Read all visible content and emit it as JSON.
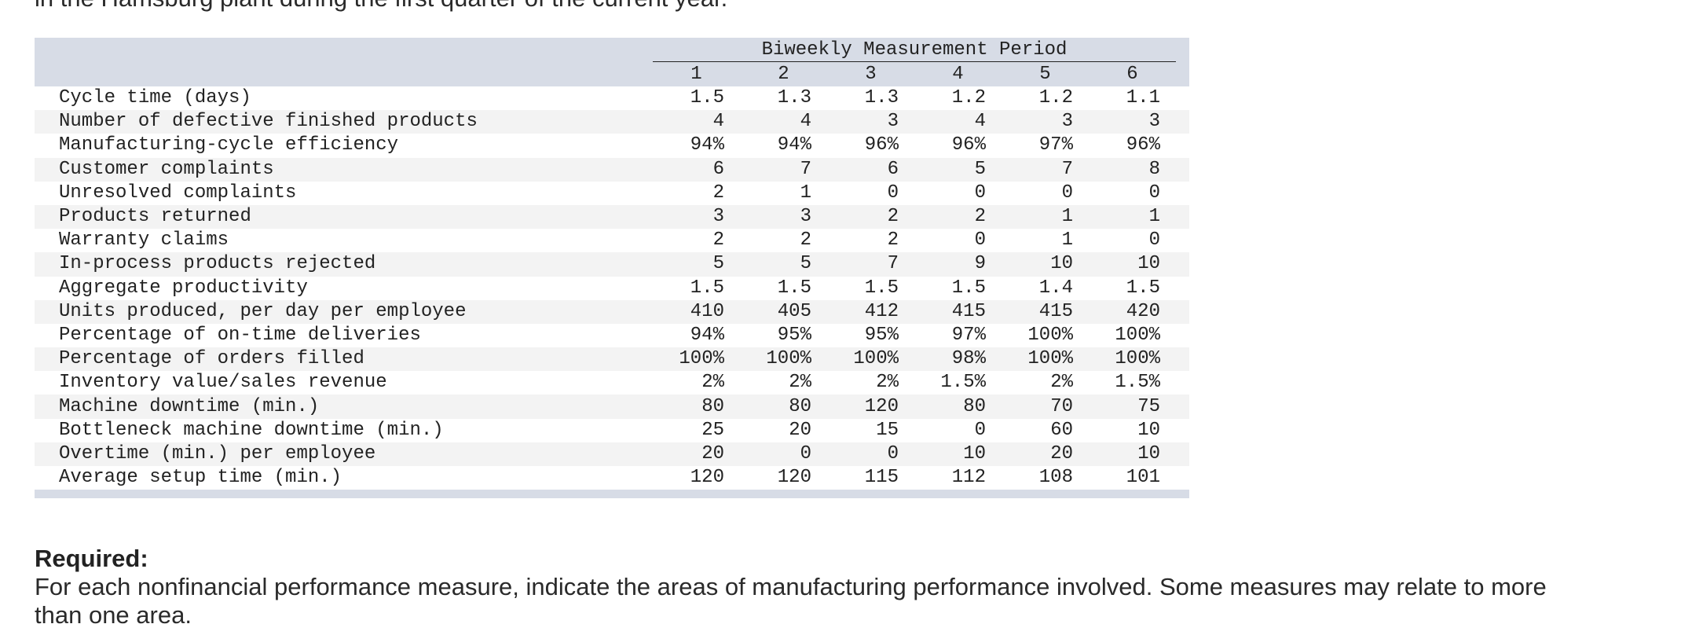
{
  "intro": "in the Hamsburg plant during the first quarter of the current year.",
  "table": {
    "group_header": "Biweekly Measurement Period",
    "periods": [
      "1",
      "2",
      "3",
      "4",
      "5",
      "6"
    ],
    "rows": [
      {
        "label": "Cycle time (days)",
        "values": [
          "1.5",
          "1.3",
          "1.3",
          "1.2",
          "1.2",
          "1.1"
        ]
      },
      {
        "label": "Number of defective finished products",
        "values": [
          "4",
          "4",
          "3",
          "4",
          "3",
          "3"
        ]
      },
      {
        "label": "Manufacturing-cycle efficiency",
        "values": [
          "94%",
          "94%",
          "96%",
          "96%",
          "97%",
          "96%"
        ]
      },
      {
        "label": "Customer complaints",
        "values": [
          "6",
          "7",
          "6",
          "5",
          "7",
          "8"
        ]
      },
      {
        "label": "Unresolved complaints",
        "values": [
          "2",
          "1",
          "0",
          "0",
          "0",
          "0"
        ]
      },
      {
        "label": "Products returned",
        "values": [
          "3",
          "3",
          "2",
          "2",
          "1",
          "1"
        ]
      },
      {
        "label": "Warranty claims",
        "values": [
          "2",
          "2",
          "2",
          "0",
          "1",
          "0"
        ]
      },
      {
        "label": "In-process products rejected",
        "values": [
          "5",
          "5",
          "7",
          "9",
          "10",
          "10"
        ]
      },
      {
        "label": "Aggregate productivity",
        "values": [
          "1.5",
          "1.5",
          "1.5",
          "1.5",
          "1.4",
          "1.5"
        ]
      },
      {
        "label": "Units produced, per day per employee",
        "values": [
          "410",
          "405",
          "412",
          "415",
          "415",
          "420"
        ]
      },
      {
        "label": "Percentage of on-time deliveries",
        "values": [
          "94%",
          "95%",
          "95%",
          "97%",
          "100%",
          "100%"
        ]
      },
      {
        "label": "Percentage of orders filled",
        "values": [
          "100%",
          "100%",
          "100%",
          "98%",
          "100%",
          "100%"
        ]
      },
      {
        "label": "Inventory value/sales revenue",
        "values": [
          "2%",
          "2%",
          "2%",
          "1.5%",
          "2%",
          "1.5%"
        ]
      },
      {
        "label": "Machine downtime (min.)",
        "values": [
          "80",
          "80",
          "120",
          "80",
          "70",
          "75"
        ]
      },
      {
        "label": "Bottleneck machine downtime (min.)",
        "values": [
          "25",
          "20",
          "15",
          "0",
          "60",
          "10"
        ]
      },
      {
        "label": "Overtime (min.) per employee",
        "values": [
          "20",
          "0",
          "0",
          "10",
          "20",
          "10"
        ]
      },
      {
        "label": "Average setup time (min.)",
        "values": [
          "120",
          "120",
          "115",
          "112",
          "108",
          "101"
        ]
      }
    ]
  },
  "required": {
    "heading": "Required:",
    "body": "For each nonfinancial performance measure, indicate the areas of manufacturing performance involved. Some measures may relate to more than one area."
  }
}
